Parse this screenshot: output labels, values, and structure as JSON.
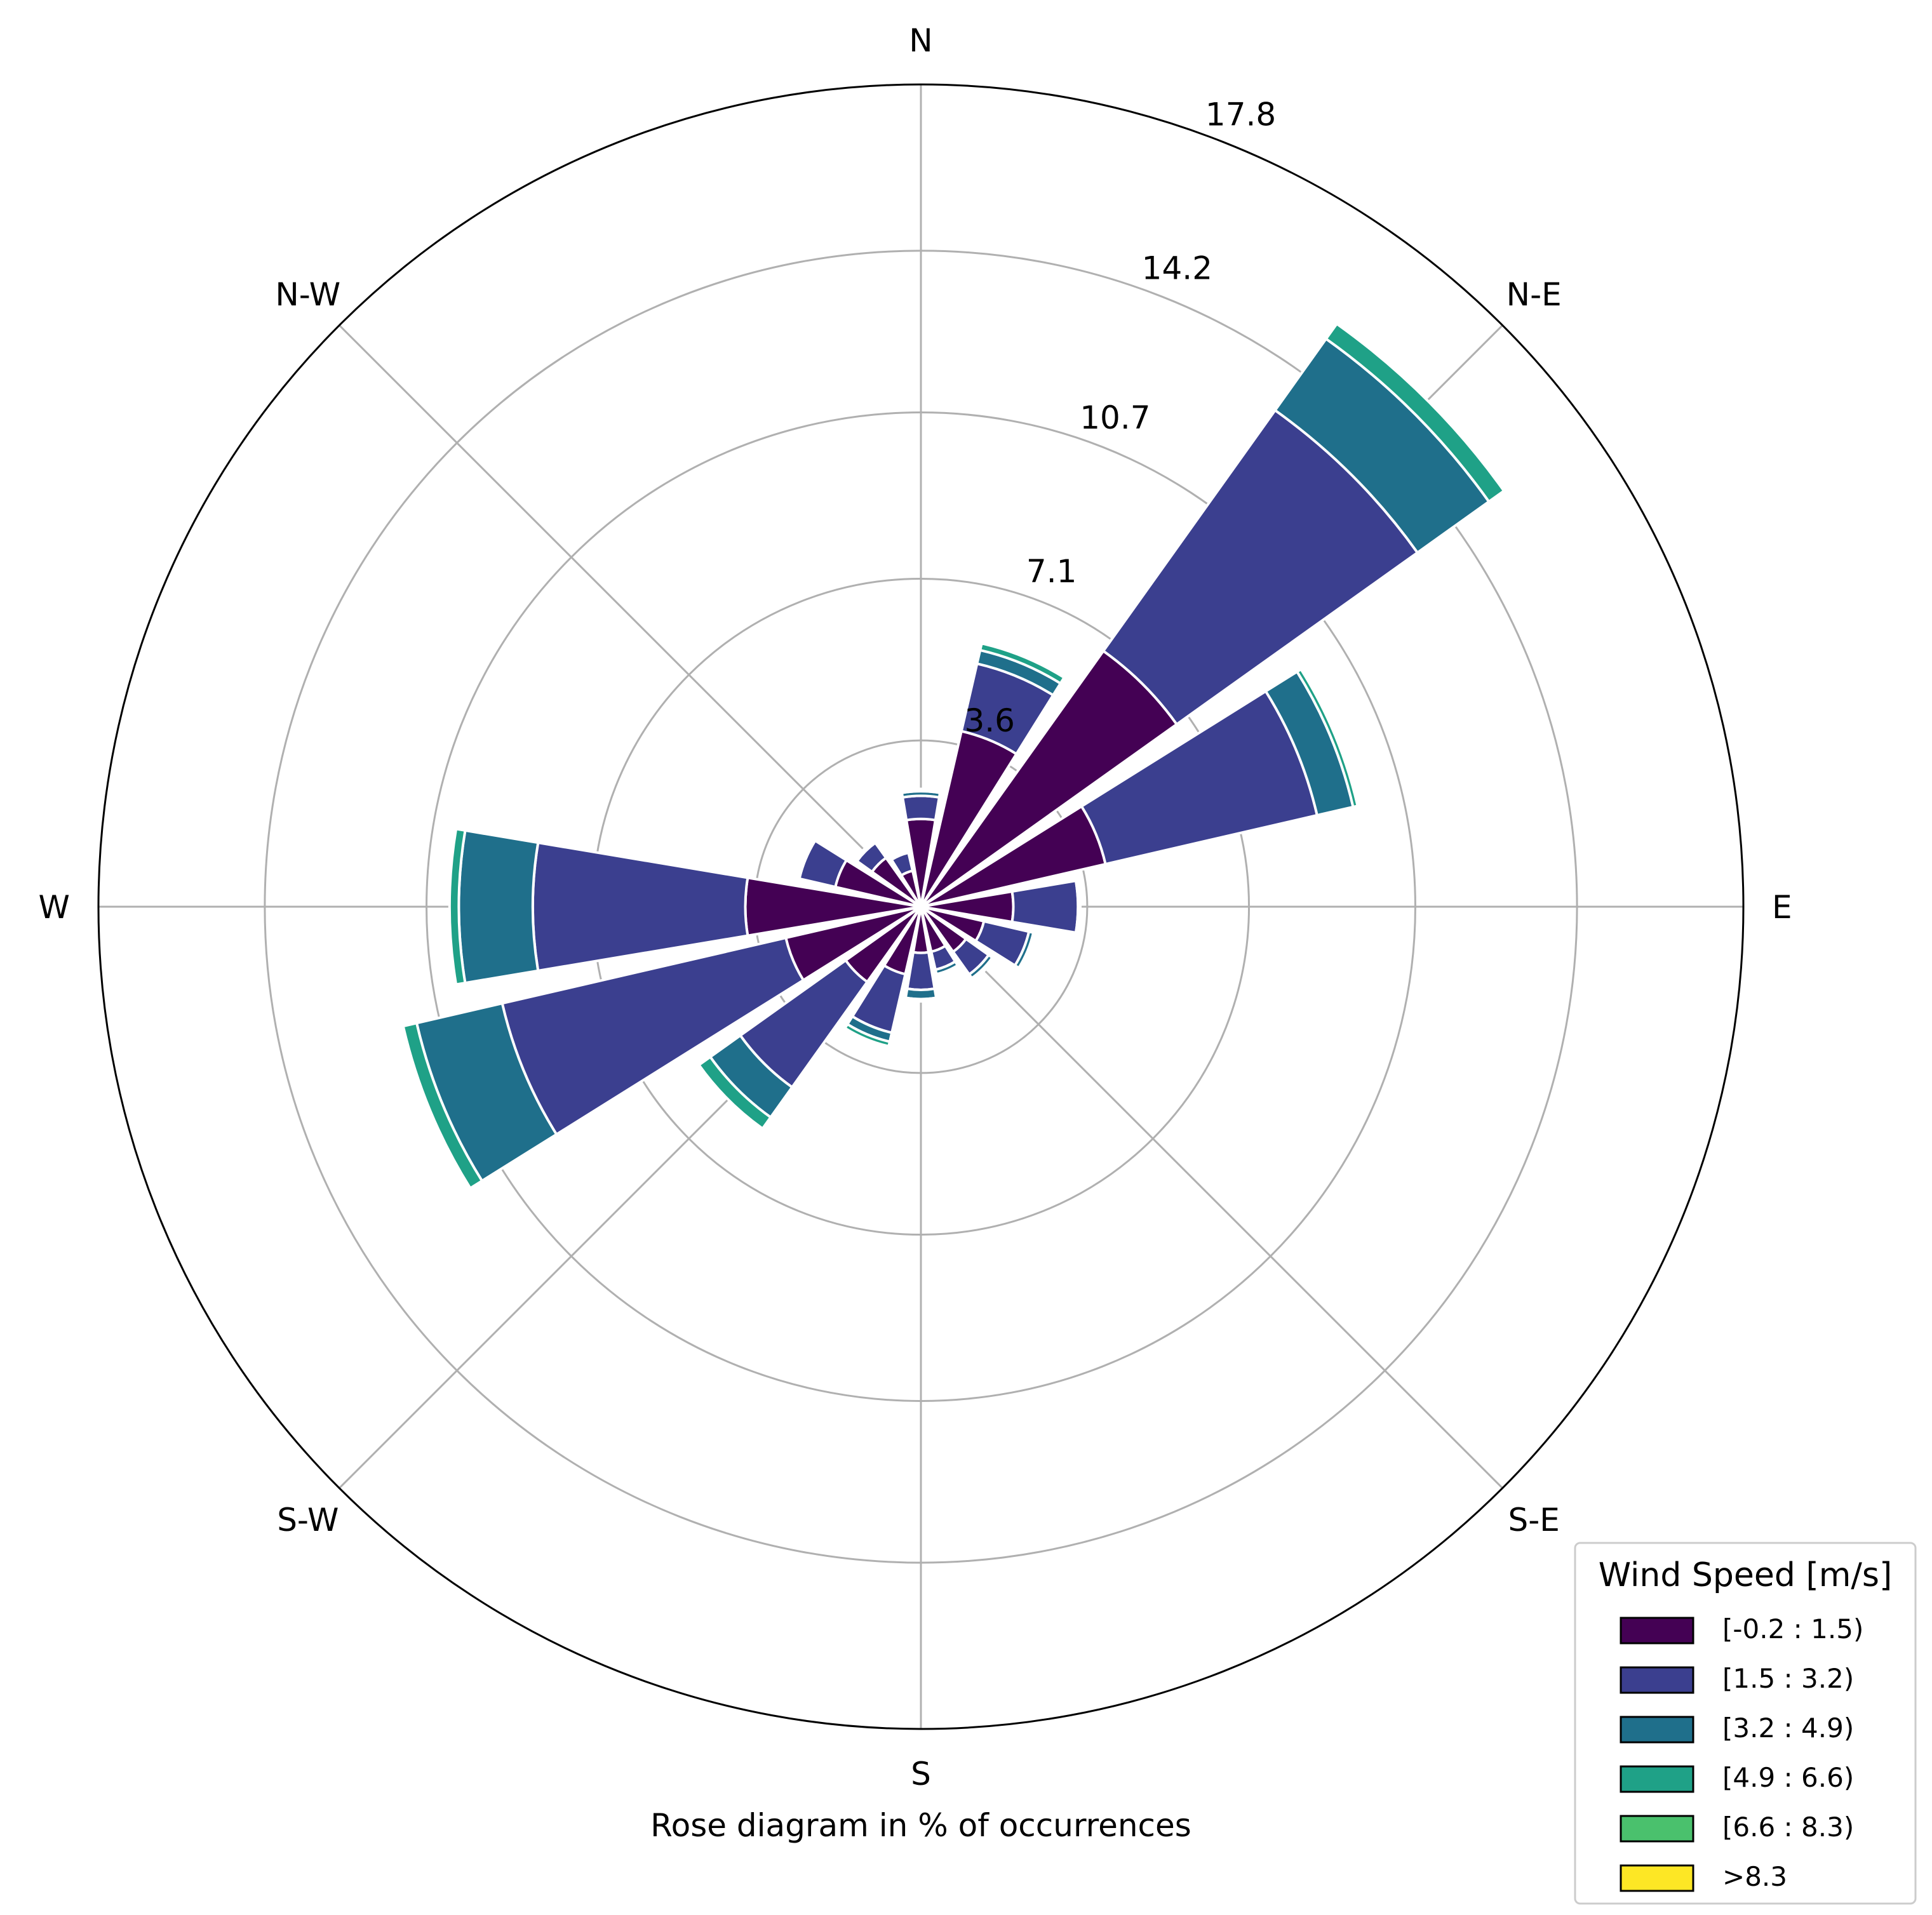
{
  "chart_data": {
    "type": "windrose",
    "xlabel": "Rose diagram in % of occurrences",
    "directions": [
      "N",
      "N-E",
      "E",
      "S-E",
      "S",
      "S-W",
      "W",
      "N-W"
    ],
    "radial_ticks": [
      "3.6",
      "7.1",
      "10.7",
      "14.2",
      "17.8"
    ],
    "radial_tick_values": [
      3.6,
      7.1,
      10.7,
      14.2,
      17.8
    ],
    "rmax": 17.8,
    "sector_centers_deg": [
      0,
      22.5,
      45,
      67.5,
      90,
      112.5,
      135,
      157.5,
      180,
      202.5,
      225,
      247.5,
      270,
      292.5,
      315,
      337.5
    ],
    "legend": {
      "title": "Wind Speed [m/s]",
      "placement": "bottom-right",
      "bins": [
        "[-0.2 : 1.5)",
        "[1.5 : 3.2)",
        "[3.2 : 4.9)",
        "[4.9 : 6.6)",
        "[6.6 : 8.3)",
        ">8.3"
      ]
    },
    "colors": [
      "#440154",
      "#3b3f8f",
      "#1f6f8b",
      "#1fa187",
      "#4ac16d",
      "#fde725"
    ],
    "series": [
      {
        "name": "[-0.2 : 1.5)",
        "values": [
          1.9,
          3.9,
          6.8,
          4.1,
          2.0,
          1.4,
          1.2,
          1.0,
          1.0,
          1.5,
          2.0,
          3.0,
          3.8,
          1.9,
          1.3,
          0.8
        ]
      },
      {
        "name": "[1.5 : 3.2)",
        "values": [
          0.5,
          1.5,
          6.4,
          4.7,
          1.4,
          1.0,
          0.6,
          0.4,
          0.8,
          1.3,
          2.8,
          6.3,
          4.6,
          0.8,
          0.4,
          0.4
        ]
      },
      {
        "name": "[3.2 : 4.9)",
        "values": [
          0.1,
          0.3,
          1.9,
          0.8,
          0.05,
          0.1,
          0.1,
          0.1,
          0.2,
          0.2,
          0.8,
          1.9,
          1.6,
          0.05,
          0.05,
          0.05
        ]
      },
      {
        "name": "[4.9 : 6.6)",
        "values": [
          0.05,
          0.15,
          0.4,
          0.1,
          0.0,
          0.05,
          0.05,
          0.05,
          0.05,
          0.1,
          0.3,
          0.3,
          0.2,
          0.0,
          0.0,
          0.0
        ]
      },
      {
        "name": "[6.6 : 8.3)",
        "values": [
          0,
          0,
          0,
          0,
          0,
          0,
          0,
          0,
          0,
          0,
          0,
          0,
          0,
          0,
          0,
          0
        ]
      },
      {
        "name": ">8.3",
        "values": [
          0,
          0,
          0,
          0,
          0,
          0,
          0,
          0,
          0,
          0,
          0,
          0,
          0,
          0,
          0,
          0
        ]
      }
    ]
  }
}
